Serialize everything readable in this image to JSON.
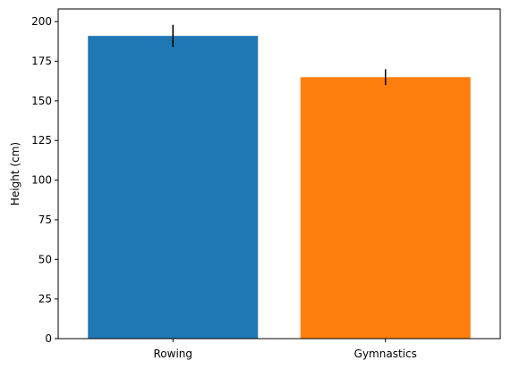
{
  "chart_data": {
    "type": "bar",
    "title": "",
    "xlabel": "",
    "ylabel": "Height (cm)",
    "categories": [
      "Rowing",
      "Gymnastics"
    ],
    "values": [
      191,
      165
    ],
    "errors": [
      7,
      5
    ],
    "colors": [
      "#1f77b4",
      "#ff7f0e"
    ],
    "error_color": "#000000",
    "ylim": [
      0,
      208
    ],
    "yticks": [
      0,
      25,
      50,
      75,
      100,
      125,
      150,
      175,
      200
    ],
    "grid": false,
    "legend": "none"
  }
}
